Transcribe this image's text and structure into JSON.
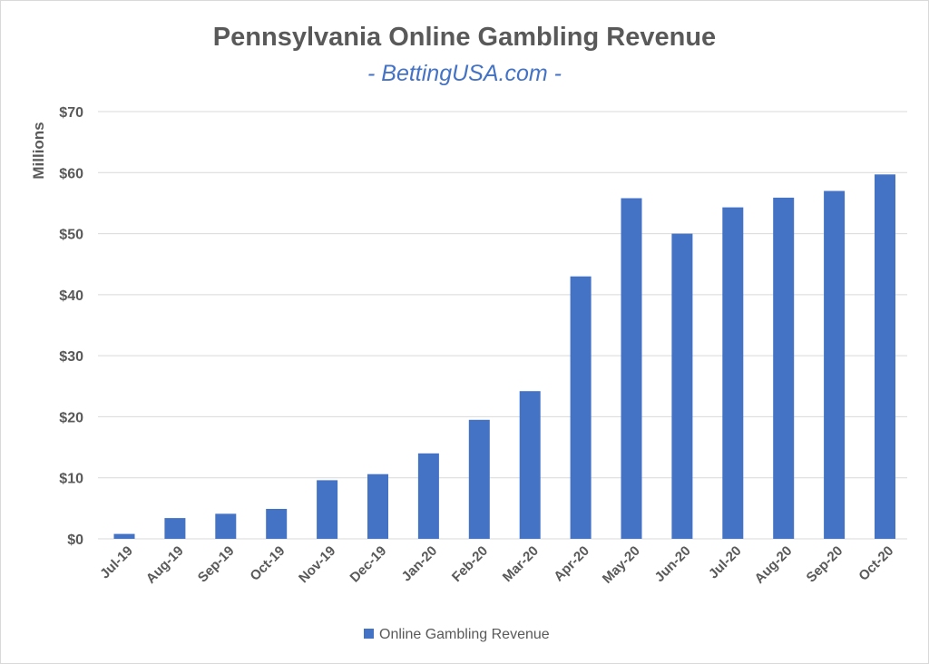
{
  "chart_data": {
    "type": "bar",
    "title": "Pennsylvania Online Gambling Revenue",
    "subtitle": "- BettingUSA.com -",
    "ylabel": "Millions",
    "xlabel": "",
    "ylim": [
      0,
      70
    ],
    "yticks": [
      0,
      10,
      20,
      30,
      40,
      50,
      60,
      70
    ],
    "ytick_labels": [
      "$0",
      "$10",
      "$20",
      "$30",
      "$40",
      "$50",
      "$60",
      "$70"
    ],
    "grid": true,
    "legend_position": "bottom",
    "categories": [
      "Jul-19",
      "Aug-19",
      "Sep-19",
      "Oct-19",
      "Nov-19",
      "Dec-19",
      "Jan-20",
      "Feb-20",
      "Mar-20",
      "Apr-20",
      "May-20",
      "Jun-20",
      "Jul-20",
      "Aug-20",
      "Sep-20",
      "Oct-20"
    ],
    "series": [
      {
        "name": "Online Gambling Revenue",
        "color": "#4472C4",
        "values": [
          0.8,
          3.4,
          4.1,
          4.9,
          9.6,
          10.6,
          14.0,
          19.5,
          24.2,
          43.0,
          55.8,
          50.0,
          54.3,
          55.9,
          57.0,
          59.7
        ]
      }
    ],
    "colors": {
      "title": "#595959",
      "subtitle": "#4472C4",
      "axis_text": "#595959",
      "grid": "#d9d9d9"
    }
  }
}
